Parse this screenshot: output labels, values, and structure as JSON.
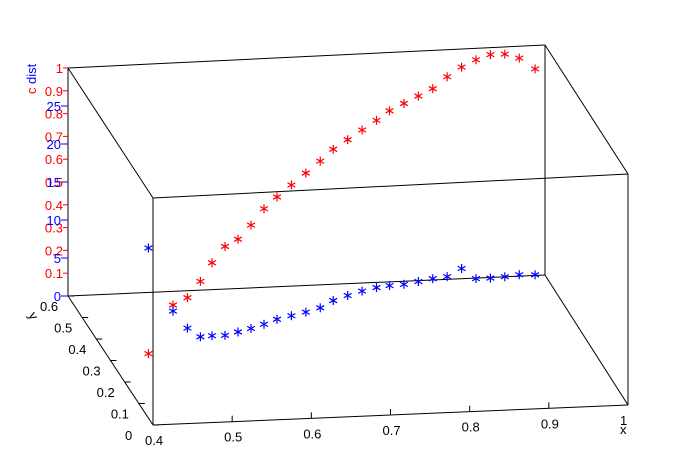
{
  "chart_data": {
    "type": "scatter",
    "title": "",
    "colors": {
      "red": "#ff0000",
      "blue": "#0000ff",
      "frame": "#000000"
    },
    "axes": {
      "x": {
        "label": "x",
        "range": [
          0.4,
          1.0
        ],
        "ticks": [
          "0.4",
          "0.5",
          "0.6",
          "0.7",
          "0.8",
          "0.9",
          "1"
        ]
      },
      "y": {
        "label": "y",
        "range": [
          0,
          0.6
        ],
        "ticks": [
          "0",
          "0.1",
          "0.2",
          "0.3",
          "0.4",
          "0.5",
          "0.6"
        ]
      },
      "z_red": {
        "label": "c",
        "range": [
          0,
          1.0
        ],
        "ticks": [
          "0.1",
          "0.2",
          "0.3",
          "0.4",
          "0.5",
          "0.6",
          "0.7",
          "0.8",
          "0.9",
          "1"
        ]
      },
      "z_blue": {
        "label": "dist",
        "range": [
          0,
          30
        ],
        "ticks": [
          "0",
          "5",
          "10",
          "15",
          "20",
          "25"
        ]
      }
    },
    "series": [
      {
        "color": "red",
        "marker": "asterisk",
        "points": [
          [
            0.43,
            0.2,
            0.12
          ],
          [
            0.47,
            0.25,
            0.28
          ],
          [
            0.49,
            0.26,
            0.3
          ],
          [
            0.51,
            0.28,
            0.35
          ],
          [
            0.53,
            0.31,
            0.4
          ],
          [
            0.55,
            0.33,
            0.45
          ],
          [
            0.57,
            0.35,
            0.46
          ],
          [
            0.59,
            0.37,
            0.5
          ],
          [
            0.61,
            0.39,
            0.55
          ],
          [
            0.63,
            0.41,
            0.58
          ],
          [
            0.65,
            0.42,
            0.62
          ],
          [
            0.67,
            0.43,
            0.66
          ],
          [
            0.69,
            0.44,
            0.7
          ],
          [
            0.71,
            0.46,
            0.73
          ],
          [
            0.73,
            0.47,
            0.76
          ],
          [
            0.75,
            0.48,
            0.79
          ],
          [
            0.77,
            0.49,
            0.82
          ],
          [
            0.79,
            0.51,
            0.84
          ],
          [
            0.81,
            0.52,
            0.86
          ],
          [
            0.83,
            0.53,
            0.88
          ],
          [
            0.85,
            0.54,
            0.9
          ],
          [
            0.87,
            0.55,
            0.94
          ],
          [
            0.89,
            0.56,
            0.97
          ],
          [
            0.91,
            0.57,
            0.99
          ],
          [
            0.93,
            0.58,
            1.0
          ],
          [
            0.95,
            0.59,
            0.99
          ],
          [
            0.97,
            0.6,
            0.96
          ],
          [
            0.99,
            0.6,
            0.91
          ]
        ]
      },
      {
        "color": "blue",
        "marker": "asterisk",
        "points": [
          [
            0.43,
            0.2,
            17.5
          ],
          [
            0.47,
            0.25,
            7.6
          ],
          [
            0.49,
            0.26,
            5.0
          ],
          [
            0.51,
            0.28,
            3.2
          ],
          [
            0.53,
            0.31,
            2.4
          ],
          [
            0.55,
            0.33,
            1.8
          ],
          [
            0.57,
            0.35,
            1.6
          ],
          [
            0.59,
            0.37,
            1.4
          ],
          [
            0.61,
            0.39,
            1.3
          ],
          [
            0.63,
            0.41,
            1.3
          ],
          [
            0.65,
            0.42,
            1.4
          ],
          [
            0.67,
            0.43,
            1.5
          ],
          [
            0.69,
            0.44,
            1.7
          ],
          [
            0.71,
            0.46,
            2.0
          ],
          [
            0.73,
            0.47,
            2.3
          ],
          [
            0.75,
            0.48,
            2.5
          ],
          [
            0.77,
            0.49,
            2.6
          ],
          [
            0.79,
            0.51,
            2.2
          ],
          [
            0.81,
            0.52,
            2.0
          ],
          [
            0.83,
            0.53,
            2.0
          ],
          [
            0.85,
            0.54,
            2.0
          ],
          [
            0.87,
            0.55,
            1.9
          ],
          [
            0.89,
            0.56,
            2.6
          ],
          [
            0.91,
            0.57,
            0.9
          ],
          [
            0.93,
            0.58,
            0.6
          ],
          [
            0.95,
            0.59,
            0.4
          ],
          [
            0.97,
            0.6,
            0.3
          ],
          [
            0.99,
            0.6,
            0.2
          ]
        ]
      }
    ]
  }
}
